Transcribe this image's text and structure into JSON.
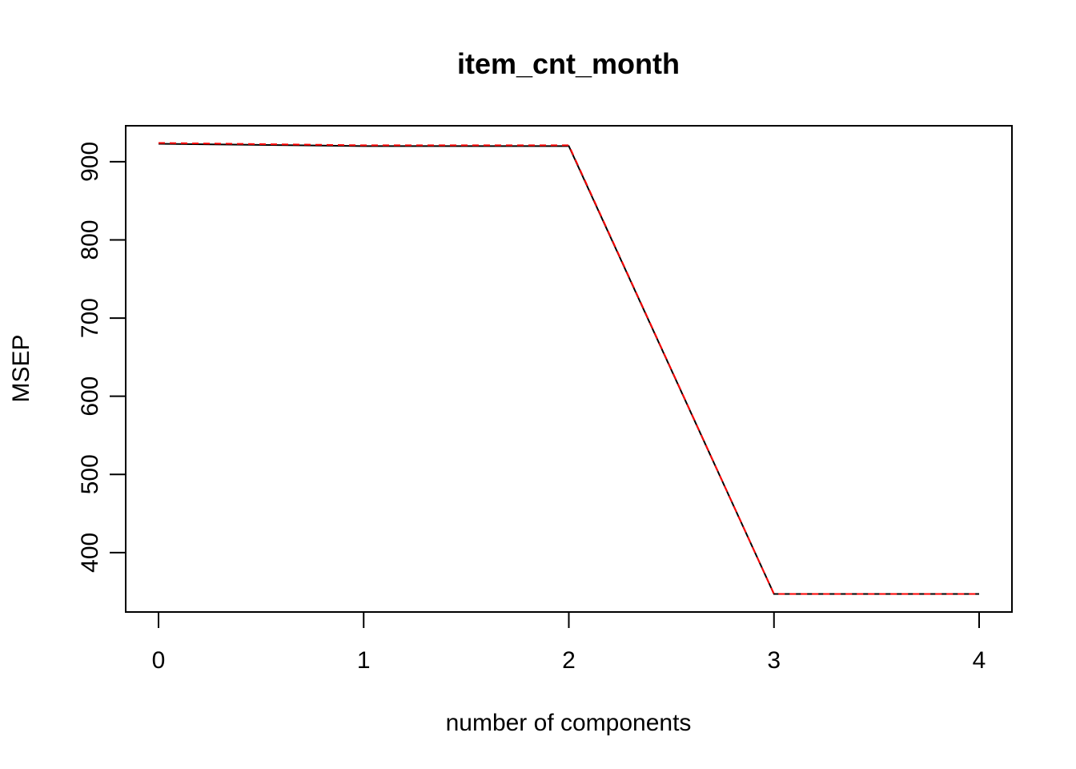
{
  "chart_data": {
    "type": "line",
    "title": "item_cnt_month",
    "xlabel": "number of components",
    "ylabel": "MSEP",
    "xlim": [
      -0.16,
      4.16
    ],
    "ylim": [
      324,
      946
    ],
    "x_ticks": [
      "0",
      "1",
      "2",
      "3",
      "4"
    ],
    "y_ticks": [
      "400",
      "500",
      "600",
      "700",
      "800",
      "900"
    ],
    "x": [
      0,
      1,
      2,
      3,
      4
    ],
    "series": [
      {
        "values": [
          923,
          920,
          920,
          347,
          347
        ],
        "color": "#000000",
        "style": "solid"
      },
      {
        "values": [
          924,
          921,
          921,
          347,
          347
        ],
        "color": "#ff0000",
        "style": "dashed"
      }
    ],
    "grid": false,
    "legend": "none"
  }
}
